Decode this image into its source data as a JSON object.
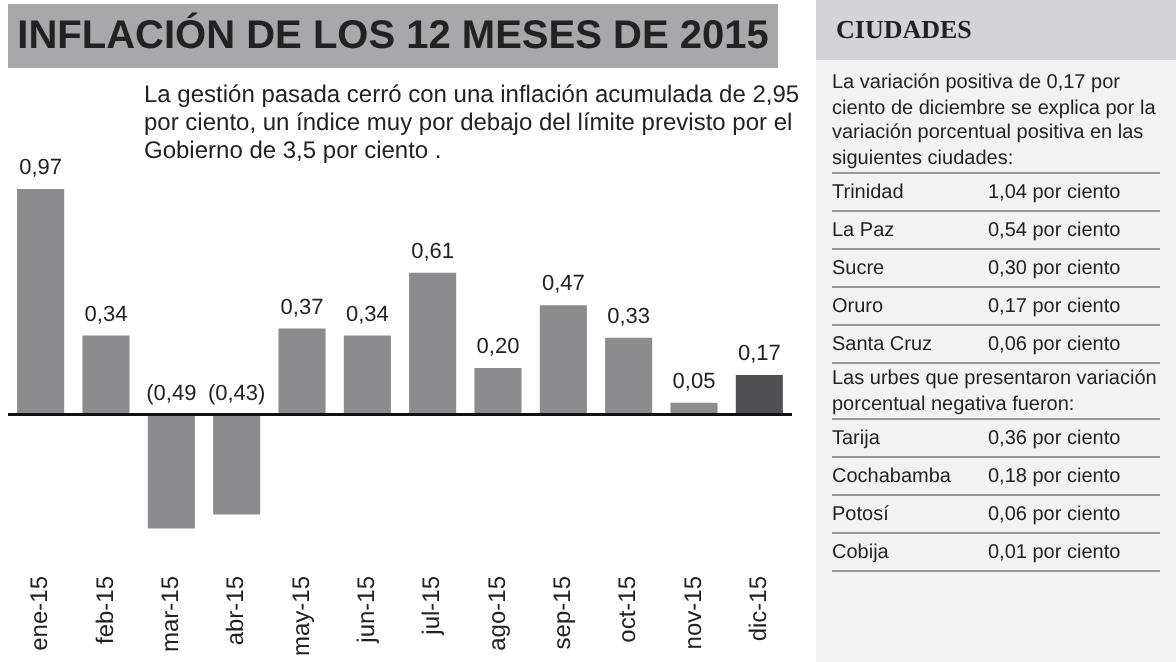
{
  "chart_data": [
    {
      "type": "bar",
      "title": "INFLACIÓN DE LOS 12 MESES DE 2015",
      "subtitle": "La gestión pasada cerró con una inflación acumulada de 2,95 por ciento, un índice muy por debajo del límite previsto por el Gobierno de 3,5 por ciento .",
      "categories": [
        "ene-15",
        "feb-15",
        "mar-15",
        "abr-15",
        "may-15",
        "jun-15",
        "jul-15",
        "ago-15",
        "sep-15",
        "oct-15",
        "nov-15",
        "dic-15"
      ],
      "values": [
        0.97,
        0.34,
        -0.49,
        -0.43,
        0.37,
        0.34,
        0.61,
        0.2,
        0.47,
        0.33,
        0.05,
        0.17
      ],
      "colors": [
        "#8c8c8e",
        "#8c8c8e",
        "#8c8c8e",
        "#8c8c8e",
        "#8c8c8e",
        "#8c8c8e",
        "#8c8c8e",
        "#8c8c8e",
        "#8c8c8e",
        "#8c8c8e",
        "#8c8c8e",
        "#505052"
      ],
      "value_labels": [
        "0,97",
        "0,34",
        "(0,49",
        "(0,43)",
        "0,37",
        "0,34",
        "0,61",
        "0,20",
        "0,47",
        "0,33",
        "0,05",
        "0,17"
      ],
      "tick_labels": "x"
    },
    {
      "type": "other",
      "title": "CIUDADES",
      "subtitle": "La variación positiva de 0,17 por ciento de diciembre se explica por la variación porcentual positiva en las siguientes ciudades:",
      "categories": [
        "Trinidad",
        "La Paz",
        "Sucre",
        "Oruro",
        "Santa Cruz"
      ],
      "value_labels": [
        "1,04 por ciento",
        "0,54 por ciento",
        "0,30 por ciento",
        "0,17 por ciento",
        "0,06 por ciento"
      ]
    },
    {
      "type": "other",
      "subtitle": "Las urbes que presentaron variación porcentual negativa fueron:",
      "categories": [
        "Tarija",
        "Cochabamba",
        "Potosí",
        "Cobija"
      ],
      "value_labels": [
        "0,36 por ciento",
        "0,18 por ciento",
        "0,06 por ciento",
        "0,01 por ciento"
      ]
    }
  ]
}
